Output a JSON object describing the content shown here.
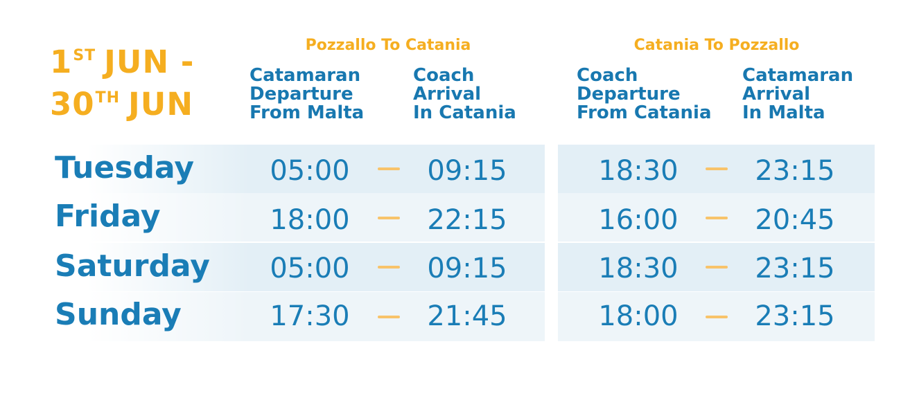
{
  "date_range": {
    "line1_day": "1",
    "line1_suffix": "ST",
    "line1_rest": "JUN -",
    "line2_day": "30",
    "line2_suffix": "TH",
    "line2_rest": "JUN"
  },
  "routes": [
    {
      "title": "Pozzallo To Catania",
      "col1": [
        "Catamaran",
        "Departure",
        "From Malta"
      ],
      "col2": [
        "Coach",
        "Arrival",
        "In Catania"
      ]
    },
    {
      "title": "Catania To Pozzallo",
      "col1": [
        "Coach",
        "Departure",
        "From Catania"
      ],
      "col2": [
        "Catamaran",
        "Arrival",
        "In Malta"
      ]
    }
  ],
  "schedule": [
    {
      "day": "Tuesday",
      "out_dep": "05:00",
      "out_arr": "09:15",
      "ret_dep": "18:30",
      "ret_arr": "23:15"
    },
    {
      "day": "Friday",
      "out_dep": "18:00",
      "out_arr": "22:15",
      "ret_dep": "16:00",
      "ret_arr": "20:45"
    },
    {
      "day": "Saturday",
      "out_dep": "05:00",
      "out_arr": "09:15",
      "ret_dep": "18:30",
      "ret_arr": "23:15"
    },
    {
      "day": "Sunday",
      "out_dep": "17:30",
      "out_arr": "21:45",
      "ret_dep": "18:00",
      "ret_arr": "23:15"
    }
  ],
  "colors": {
    "accent_orange": "#f5ae20",
    "primary_blue": "#1a7db6",
    "dash": "#f8c36a",
    "band_dark": "#e3eff6",
    "band_light": "#eef5f9"
  }
}
